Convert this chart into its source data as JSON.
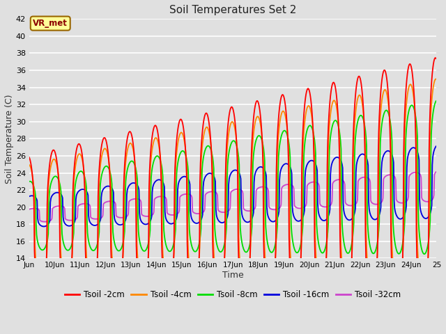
{
  "title": "Soil Temperatures Set 2",
  "xlabel": "Time",
  "ylabel": "Soil Temperature (C)",
  "ylim": [
    14,
    42
  ],
  "yticks": [
    14,
    16,
    18,
    20,
    22,
    24,
    26,
    28,
    30,
    32,
    34,
    36,
    38,
    40,
    42
  ],
  "x_start_day": 9.0,
  "x_end_day": 25.0,
  "x_tick_days": [
    9,
    10,
    11,
    12,
    13,
    14,
    15,
    16,
    17,
    18,
    19,
    20,
    21,
    22,
    23,
    24,
    25
  ],
  "x_tick_labels": [
    "Jun",
    "10Jun",
    "11Jun",
    "12Jun",
    "13Jun",
    "14Jun",
    "15Jun",
    "16Jun",
    "17Jun",
    "18Jun",
    "19Jun",
    "20Jun",
    "21Jun",
    "22Jun",
    "23Jun",
    "24Jun",
    "25"
  ],
  "background_color": "#e0e0e0",
  "plot_bg_color": "#e0e0e0",
  "grid_color": "#ffffff",
  "line_colors": {
    "2cm": "#ff0000",
    "4cm": "#ff8800",
    "8cm": "#00dd00",
    "16cm": "#0000dd",
    "32cm": "#cc44cc"
  },
  "line_labels": {
    "2cm": "Tsoil -2cm",
    "4cm": "Tsoil -4cm",
    "8cm": "Tsoil -8cm",
    "16cm": "Tsoil -16cm",
    "32cm": "Tsoil -32cm"
  },
  "annotation_text": "VR_met",
  "annotation_bg": "#ffff99",
  "annotation_border": "#996600",
  "figsize": [
    6.4,
    4.8
  ],
  "dpi": 100
}
